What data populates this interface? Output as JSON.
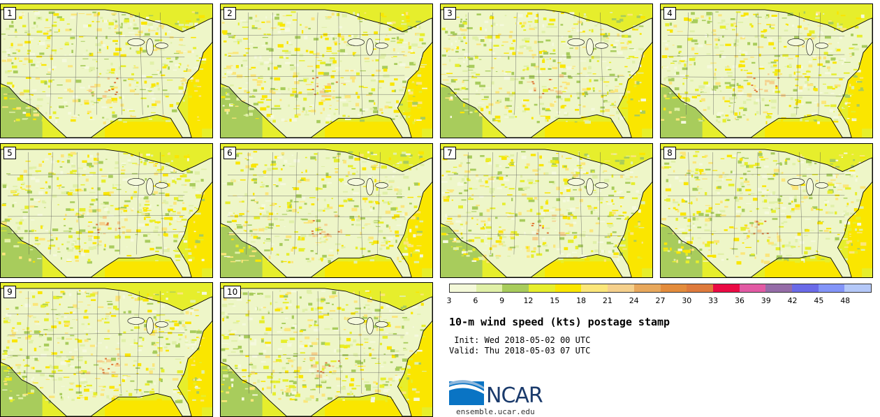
{
  "panels": [
    {
      "label": "1"
    },
    {
      "label": "2"
    },
    {
      "label": "3"
    },
    {
      "label": "4"
    },
    {
      "label": "5"
    },
    {
      "label": "6"
    },
    {
      "label": "7"
    },
    {
      "label": "8"
    },
    {
      "label": "9"
    },
    {
      "label": "10"
    }
  ],
  "colorbar": {
    "ticks": [
      "3",
      "6",
      "9",
      "12",
      "15",
      "18",
      "21",
      "24",
      "27",
      "30",
      "33",
      "36",
      "39",
      "42",
      "45",
      "48"
    ],
    "colors": [
      "#f4f9d9",
      "#e0f0a8",
      "#a8cc5c",
      "#e6ee2c",
      "#fae600",
      "#fbe67a",
      "#f5d08c",
      "#e8a85c",
      "#e38c3c",
      "#de7a3c",
      "#ea0a44",
      "#e25aa4",
      "#956ca8",
      "#6a6ae8",
      "#8294f8",
      "#b4c8f8"
    ]
  },
  "title": "10-m wind speed (kts) postage stamp",
  "init": " Init: Wed 2018-05-02 00 UTC",
  "valid": "Valid: Thu 2018-05-03 07 UTC",
  "logo": {
    "name": "NCAR",
    "url": "ensemble.ucar.edu"
  }
}
